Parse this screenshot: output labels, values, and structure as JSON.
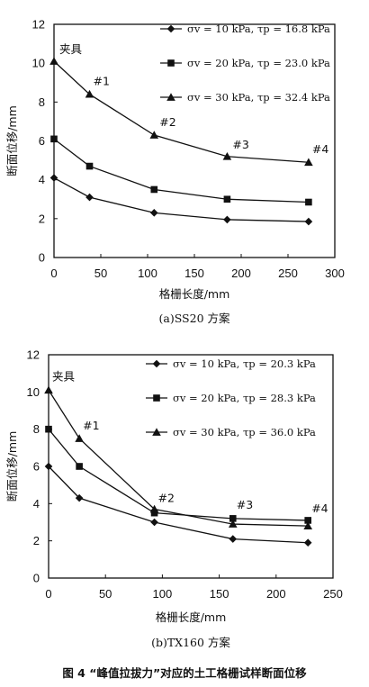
{
  "figure_caption": "图 4 “峰值拉拔力”对应的土工格栅试样断面位移",
  "chart_data": [
    {
      "type": "line",
      "panel_label": "(a)SS20 方案",
      "xlabel": "格栅长度/mm",
      "ylabel": "断面位移/mm",
      "xlim": [
        0,
        300
      ],
      "ylim": [
        0,
        12
      ],
      "xticks": [
        0,
        50,
        100,
        150,
        200,
        250,
        300
      ],
      "yticks": [
        0,
        2,
        4,
        6,
        8,
        10,
        12
      ],
      "grid": false,
      "legend_position": "top-right",
      "annotations": [
        {
          "text": "夹具",
          "x": 0,
          "y": 10.1
        },
        {
          "text": "#1",
          "x": 38,
          "y": 8.4
        },
        {
          "text": "#2",
          "x": 107,
          "y": 6.3
        },
        {
          "text": "#3",
          "x": 185,
          "y": 5.2
        },
        {
          "text": "#4",
          "x": 272,
          "y": 4.9
        }
      ],
      "series": [
        {
          "name": "σv = 10 kPa, τp = 16.8 kPa",
          "marker": "diamond",
          "x": [
            0,
            38,
            107,
            185,
            272
          ],
          "y": [
            4.1,
            3.1,
            2.3,
            1.95,
            1.85
          ]
        },
        {
          "name": "σv = 20 kPa, τp = 23.0 kPa",
          "marker": "square",
          "x": [
            0,
            38,
            107,
            185,
            272
          ],
          "y": [
            6.1,
            4.7,
            3.5,
            3.0,
            2.85
          ]
        },
        {
          "name": "σv = 30 kPa, τp = 32.4 kPa",
          "marker": "triangle",
          "x": [
            0,
            38,
            107,
            185,
            272
          ],
          "y": [
            10.1,
            8.4,
            6.3,
            5.2,
            4.9
          ]
        }
      ]
    },
    {
      "type": "line",
      "panel_label": "(b)TX160 方案",
      "xlabel": "格栅长度/mm",
      "ylabel": "断面位移/mm",
      "xlim": [
        0,
        250
      ],
      "ylim": [
        0,
        12
      ],
      "xticks": [
        0,
        50,
        100,
        150,
        200,
        250
      ],
      "yticks": [
        0,
        2,
        4,
        6,
        8,
        10,
        12
      ],
      "grid": false,
      "legend_position": "top-right",
      "annotations": [
        {
          "text": "夹具",
          "x": 0,
          "y": 10.1
        },
        {
          "text": "#1",
          "x": 27,
          "y": 7.5
        },
        {
          "text": "#2",
          "x": 93,
          "y": 3.6
        },
        {
          "text": "#3",
          "x": 162,
          "y": 3.3
        },
        {
          "text": "#4",
          "x": 228,
          "y": 3.1
        }
      ],
      "series": [
        {
          "name": "σv = 10 kPa, τp = 20.3 kPa",
          "marker": "diamond",
          "x": [
            0,
            27,
            93,
            162,
            228
          ],
          "y": [
            6.0,
            4.3,
            3.0,
            2.1,
            1.9
          ]
        },
        {
          "name": "σv = 20 kPa, τp = 28.3 kPa",
          "marker": "square",
          "x": [
            0,
            27,
            93,
            162,
            228
          ],
          "y": [
            8.0,
            6.0,
            3.5,
            3.2,
            3.1
          ]
        },
        {
          "name": "σv = 30 kPa, τp = 36.0 kPa",
          "marker": "triangle",
          "x": [
            0,
            27,
            93,
            162,
            228
          ],
          "y": [
            10.1,
            7.5,
            3.7,
            2.9,
            2.8
          ]
        }
      ]
    }
  ]
}
